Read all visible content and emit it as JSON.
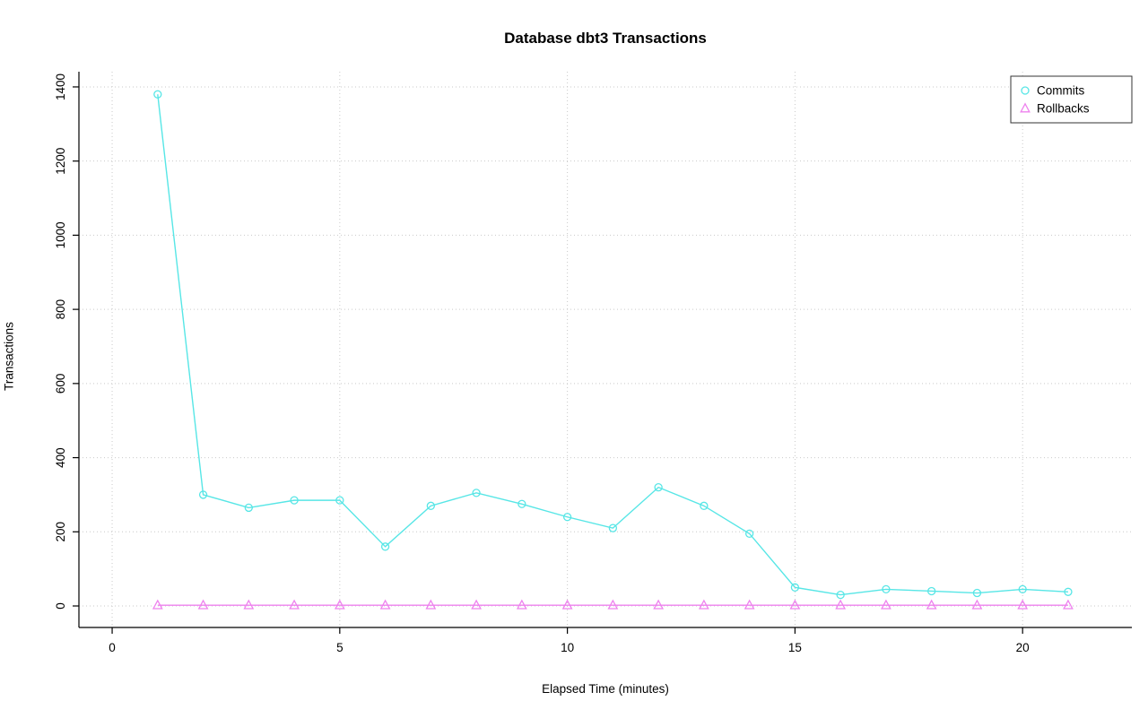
{
  "page": {
    "background": "#FFFFFF"
  },
  "chart_data": {
    "type": "line",
    "title": "Database dbt3 Transactions",
    "xlabel": "Elapsed Time (minutes)",
    "ylabel": "Transactions",
    "x": [
      1,
      2,
      3,
      4,
      5,
      6,
      7,
      8,
      9,
      10,
      11,
      12,
      13,
      14,
      15,
      16,
      17,
      18,
      19,
      20,
      21
    ],
    "series": [
      {
        "name": "Commits",
        "marker": "circle",
        "color": "#57E6E6",
        "values": [
          1380,
          300,
          265,
          285,
          285,
          160,
          270,
          305,
          275,
          240,
          210,
          320,
          270,
          195,
          50,
          30,
          45,
          40,
          35,
          45,
          38
        ]
      },
      {
        "name": "Rollbacks",
        "marker": "triangle",
        "color": "#EE82EE",
        "values": [
          2,
          2,
          2,
          2,
          2,
          2,
          2,
          2,
          2,
          2,
          2,
          2,
          2,
          2,
          2,
          2,
          2,
          2,
          2,
          2,
          2
        ]
      }
    ],
    "x_ticks": [
      0,
      5,
      10,
      15,
      20
    ],
    "y_ticks": [
      0,
      200,
      400,
      600,
      800,
      1000,
      1200,
      1400
    ],
    "xlim": [
      -0.73,
      22.4
    ],
    "ylim": [
      -58,
      1441
    ],
    "grid": "dotted",
    "grid_color": "#C9C9C9",
    "axis_color": "#000000",
    "legend_position": "top-right"
  }
}
